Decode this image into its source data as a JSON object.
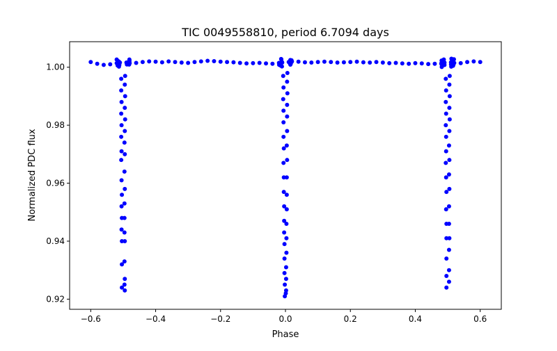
{
  "chart_data": {
    "type": "scatter",
    "title": "TIC 0049558810, period 6.7094 days",
    "xlabel": "Phase",
    "ylabel": "Normalized PDC flux",
    "xlim": [
      -0.665,
      0.665
    ],
    "ylim": [
      0.9165,
      1.0088
    ],
    "xticks": [
      -0.6,
      -0.4,
      -0.2,
      0.0,
      0.2,
      0.4,
      0.6
    ],
    "xtick_labels": [
      "−0.6",
      "−0.4",
      "−0.2",
      "0.0",
      "0.2",
      "0.4",
      "0.6"
    ],
    "yticks": [
      0.92,
      0.94,
      0.96,
      0.98,
      1.0
    ],
    "ytick_labels": [
      "0.92",
      "0.94",
      "0.96",
      "0.98",
      "1.00"
    ],
    "grid": false,
    "marker_color": "#0000ff",
    "baseline": {
      "x": [
        -0.6,
        -0.58,
        -0.56,
        -0.54,
        -0.52,
        -0.51,
        -0.49,
        -0.48,
        -0.46,
        -0.44,
        -0.42,
        -0.4,
        -0.38,
        -0.36,
        -0.34,
        -0.32,
        -0.3,
        -0.28,
        -0.26,
        -0.24,
        -0.22,
        -0.2,
        -0.18,
        -0.16,
        -0.14,
        -0.12,
        -0.1,
        -0.08,
        -0.06,
        -0.04,
        -0.02,
        -0.01,
        0.01,
        0.02,
        0.04,
        0.06,
        0.08,
        0.1,
        0.12,
        0.14,
        0.16,
        0.18,
        0.2,
        0.22,
        0.24,
        0.26,
        0.28,
        0.3,
        0.32,
        0.34,
        0.36,
        0.38,
        0.4,
        0.42,
        0.44,
        0.46,
        0.48,
        0.49,
        0.51,
        0.52,
        0.54,
        0.56,
        0.58,
        0.6
      ],
      "y": [
        1.0018,
        1.0012,
        1.0008,
        1.001,
        1.0014,
        1.0016,
        1.0016,
        1.0014,
        1.0015,
        1.0018,
        1.002,
        1.0019,
        1.0017,
        1.002,
        1.0018,
        1.0016,
        1.0015,
        1.0018,
        1.002,
        1.0022,
        1.0021,
        1.0019,
        1.0018,
        1.0017,
        1.0015,
        1.0013,
        1.0014,
        1.0015,
        1.0013,
        1.0012,
        1.0015,
        1.0016,
        1.0018,
        1.002,
        1.0019,
        1.0017,
        1.0016,
        1.0018,
        1.0019,
        1.0018,
        1.0016,
        1.0017,
        1.0018,
        1.0019,
        1.0017,
        1.0016,
        1.0018,
        1.0016,
        1.0014,
        1.0015,
        1.0013,
        1.0012,
        1.0014,
        1.0013,
        1.0011,
        1.0012,
        1.0013,
        1.0016,
        1.0017,
        1.0015,
        1.0014,
        1.0018,
        1.002,
        1.0018
      ],
      "scatter_halfwidth": 0.0015
    },
    "eclipses": [
      {
        "center": -0.5,
        "x": [
          -0.006,
          -0.006,
          -0.005,
          -0.006,
          -0.005,
          -0.006,
          -0.005,
          -0.006,
          -0.005,
          -0.004,
          -0.005,
          -0.004,
          -0.005,
          -0.004,
          -0.004,
          -0.004,
          0.006,
          0.005,
          0.006,
          0.005,
          0.006,
          0.005,
          0.004,
          0.005,
          0.004,
          0.005,
          0.004,
          0.004,
          0.004,
          0.005,
          0.004,
          0.005,
          0.004,
          0.005
        ],
        "y": [
          0.996,
          0.992,
          0.988,
          0.984,
          0.98,
          0.976,
          0.971,
          0.968,
          0.961,
          0.956,
          0.952,
          0.948,
          0.944,
          0.94,
          0.932,
          0.924,
          0.997,
          0.994,
          0.99,
          0.986,
          0.982,
          0.978,
          0.974,
          0.97,
          0.964,
          0.958,
          0.953,
          0.948,
          0.943,
          0.94,
          0.933,
          0.927,
          0.925,
          0.923
        ]
      },
      {
        "center": 0.0,
        "x": [
          -0.007,
          -0.006,
          -0.007,
          -0.006,
          -0.006,
          -0.006,
          -0.005,
          -0.006,
          -0.005,
          -0.005,
          -0.004,
          -0.004,
          -0.004,
          -0.003,
          -0.003,
          -0.003,
          -0.002,
          -0.002,
          0.006,
          0.005,
          0.006,
          0.005,
          0.005,
          0.005,
          0.004,
          0.005,
          0.004,
          0.004,
          0.004,
          0.003,
          0.003,
          0.003,
          0.002,
          0.002,
          0.002,
          0.001
        ],
        "y": [
          0.997,
          0.993,
          0.989,
          0.985,
          0.981,
          0.976,
          0.972,
          0.967,
          0.962,
          0.957,
          0.952,
          0.947,
          0.943,
          0.939,
          0.934,
          0.929,
          0.925,
          0.921,
          0.998,
          0.995,
          0.991,
          0.987,
          0.983,
          0.978,
          0.973,
          0.968,
          0.962,
          0.956,
          0.951,
          0.946,
          0.941,
          0.936,
          0.931,
          0.927,
          0.923,
          0.922
        ]
      },
      {
        "center": 0.5,
        "x": [
          -0.006,
          -0.005,
          -0.006,
          -0.005,
          -0.006,
          -0.005,
          -0.005,
          -0.006,
          -0.005,
          -0.004,
          -0.005,
          -0.004,
          -0.004,
          -0.004,
          -0.004,
          -0.004,
          0.006,
          0.005,
          0.006,
          0.005,
          0.006,
          0.005,
          0.004,
          0.005,
          0.004,
          0.005,
          0.004,
          0.004,
          0.005,
          0.004,
          0.004,
          0.004
        ],
        "y": [
          0.996,
          0.992,
          0.988,
          0.984,
          0.98,
          0.976,
          0.971,
          0.967,
          0.962,
          0.957,
          0.951,
          0.946,
          0.941,
          0.934,
          0.928,
          0.924,
          0.997,
          0.994,
          0.99,
          0.986,
          0.982,
          0.978,
          0.973,
          0.968,
          0.963,
          0.958,
          0.952,
          0.946,
          0.941,
          0.937,
          0.93,
          0.926
        ]
      }
    ]
  }
}
